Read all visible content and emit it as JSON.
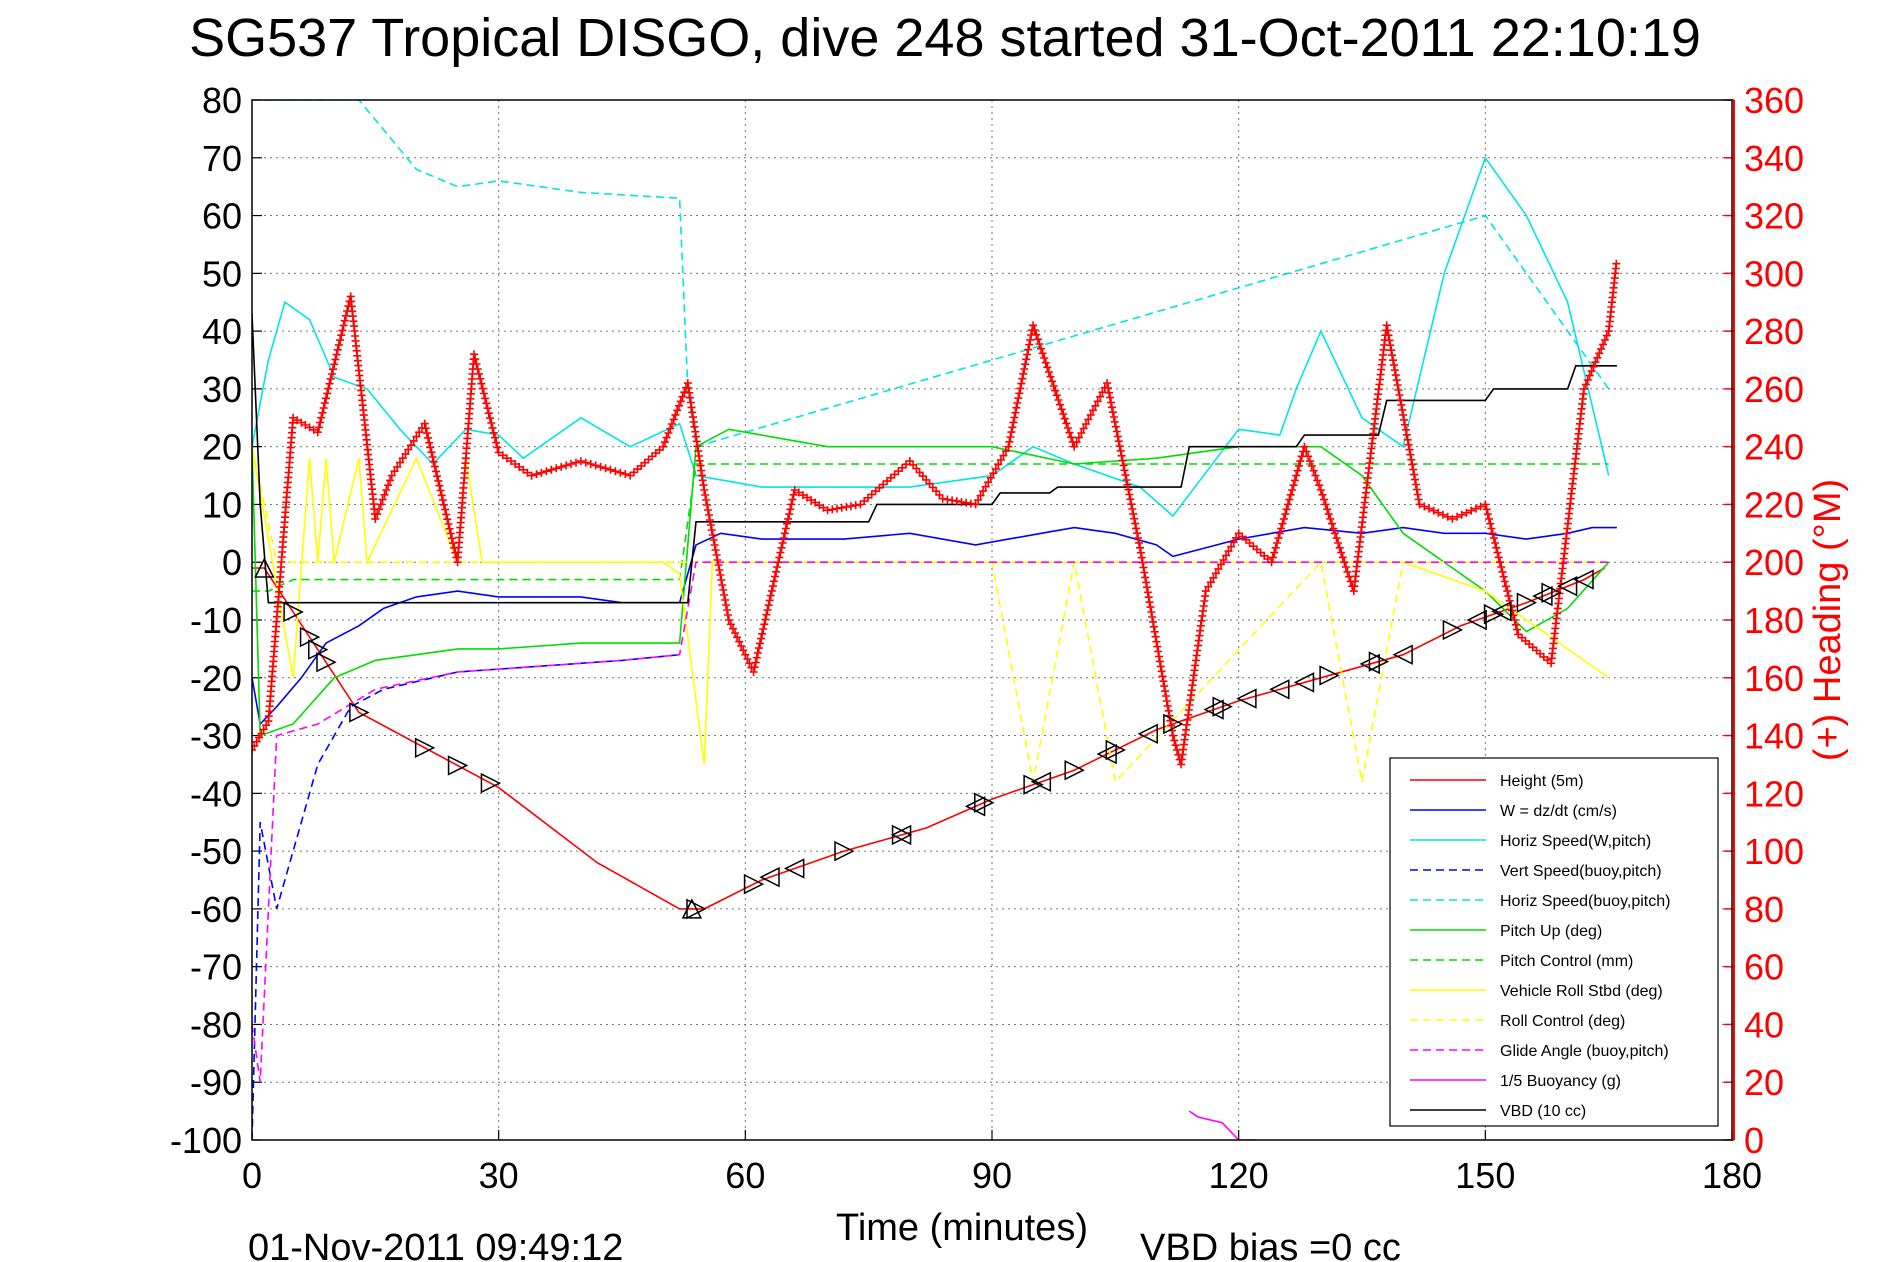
{
  "chart_data": {
    "type": "line",
    "title": "SG537 Tropical DISGO, dive 248 started 31-Oct-2011 22:10:19",
    "xlabel": "Time (minutes)",
    "ylabel": "",
    "y2label": "(+) Heading (°M)",
    "xlim": [
      0,
      180
    ],
    "ylim": [
      -100,
      80
    ],
    "y2lim": [
      0,
      360
    ],
    "xticks": [
      "0",
      "30",
      "60",
      "90",
      "120",
      "150",
      "180"
    ],
    "yticks": [
      "80",
      "70",
      "60",
      "50",
      "40",
      "30",
      "20",
      "10",
      "0",
      "-10",
      "-20",
      "-30",
      "-40",
      "-50",
      "-60",
      "-70",
      "-80",
      "-90",
      "-100"
    ],
    "y2ticks": [
      "360",
      "340",
      "320",
      "300",
      "280",
      "260",
      "240",
      "220",
      "200",
      "180",
      "160",
      "140",
      "120",
      "100",
      "80",
      "60",
      "40",
      "20",
      "0"
    ],
    "grid": true,
    "legend_position": "bottom-right",
    "footer_time": "01-Nov-2011 09:49:12",
    "footer_bias": "VBD bias =0 cc",
    "colors": {
      "red": "#ff0000",
      "blue": "#0000ff",
      "cyan": "#00e5e5",
      "green": "#00dd00",
      "yellow": "#ffff00",
      "magenta": "#ff00ff",
      "black": "#000000"
    },
    "series": [
      {
        "name": "Height (5m)",
        "color": "#ff0000",
        "style": "solid",
        "x": [
          0,
          1.5,
          13,
          30,
          42,
          52,
          53,
          55,
          62,
          72,
          82,
          90,
          100,
          110,
          120,
          130,
          140,
          147,
          155,
          162,
          164.5
        ],
        "y": [
          -1,
          -1,
          -26,
          -39,
          -52,
          -60,
          -60,
          -60,
          -55,
          -50,
          -46,
          -41,
          -36,
          -29,
          -24,
          -20,
          -16,
          -11,
          -7,
          -3,
          -1
        ]
      },
      {
        "name": "W = dz/dt (cm/s)",
        "color": "#0000ff",
        "style": "solid",
        "x": [
          0,
          1,
          3,
          6,
          9,
          13,
          16,
          20,
          25,
          30,
          40,
          45,
          52,
          54,
          57,
          62,
          72,
          80,
          88,
          92,
          96,
          100,
          105,
          110,
          112,
          120,
          128,
          135,
          140,
          145,
          150,
          155,
          160,
          163,
          166
        ],
        "y": [
          -20,
          -28,
          -25,
          -20,
          -14,
          -11,
          -8,
          -6,
          -5,
          -6,
          -6,
          -7,
          -7,
          3,
          5,
          4,
          4,
          5,
          3,
          4,
          5,
          6,
          5,
          3,
          1,
          4,
          6,
          5,
          6,
          5,
          5,
          4,
          5,
          6,
          6
        ]
      },
      {
        "name": "Horiz Speed(W,pitch)",
        "color": "#00e5e5",
        "style": "solid",
        "x": [
          0,
          2,
          4,
          7,
          10,
          14,
          18,
          22,
          26,
          30,
          33,
          40,
          46,
          52,
          54,
          58,
          62,
          70,
          80,
          90,
          95,
          100,
          108,
          112,
          120,
          125,
          127,
          130,
          135,
          140,
          145,
          150,
          155,
          160,
          165
        ],
        "y": [
          20,
          35,
          45,
          42,
          32,
          30,
          23,
          17,
          23,
          22,
          18,
          25,
          20,
          24,
          15,
          14,
          13,
          13,
          13,
          15,
          20,
          17,
          13,
          8,
          23,
          22,
          30,
          40,
          25,
          20,
          50,
          70,
          60,
          45,
          15
        ]
      },
      {
        "name": "Vert Speed(buoy,pitch)",
        "color": "#0000ff",
        "style": "dashed",
        "x": [
          0,
          1,
          3,
          5,
          8,
          12,
          16,
          25,
          35,
          45,
          52
        ],
        "y": [
          -100,
          -45,
          -60,
          -50,
          -35,
          -25,
          -22,
          -19,
          -18,
          -17,
          -16
        ]
      },
      {
        "name": "Horiz Speed(buoy,pitch)",
        "color": "#00e5e5",
        "style": "dashed",
        "x": [
          1.5,
          2.5,
          5,
          10,
          13,
          20,
          25,
          30,
          40,
          52,
          53,
          54,
          150,
          155,
          160,
          165
        ],
        "y": [
          80,
          80,
          80,
          80,
          80,
          68,
          65,
          66,
          64,
          63,
          30,
          20,
          60,
          50,
          40,
          30
        ]
      },
      {
        "name": "Pitch Up (deg)",
        "color": "#00dd00",
        "style": "solid",
        "x": [
          0,
          1,
          5,
          10,
          15,
          20,
          25,
          30,
          40,
          52,
          54,
          58,
          70,
          80,
          90,
          100,
          110,
          120,
          130,
          135,
          140,
          150,
          155,
          160,
          165
        ],
        "y": [
          20,
          -30,
          -28,
          -20,
          -17,
          -16,
          -15,
          -15,
          -14,
          -14,
          20,
          23,
          20,
          20,
          20,
          17,
          18,
          20,
          20,
          15,
          5,
          -5,
          -12,
          -8,
          0
        ]
      },
      {
        "name": "Pitch Control (mm)",
        "color": "#00dd00",
        "style": "dashed",
        "x": [
          0,
          2,
          5,
          52,
          54,
          165
        ],
        "y": [
          -5,
          -5,
          -3,
          -3,
          17,
          17
        ]
      },
      {
        "name": "Vehicle Roll Stbd (deg)",
        "color": "#ffff00",
        "style": "solid",
        "x": [
          0,
          5,
          7,
          8,
          9,
          10,
          13,
          14,
          20,
          25,
          26,
          28,
          30,
          50,
          52,
          55,
          56,
          60,
          90,
          100,
          130,
          140,
          150,
          160,
          165
        ],
        "y": [
          20,
          -20,
          18,
          0,
          18,
          0,
          18,
          0,
          18,
          0,
          18,
          0,
          0,
          0,
          -2,
          -35,
          0,
          0,
          0,
          0,
          0,
          0,
          -5,
          -15,
          -20
        ]
      },
      {
        "name": "Roll Control (deg)",
        "color": "#ffff00",
        "style": "dashed",
        "x": [
          0,
          3,
          52,
          54,
          90,
          95,
          100,
          105,
          130,
          135,
          140,
          165
        ],
        "y": [
          20,
          0,
          0,
          0,
          0,
          -38,
          0,
          -38,
          0,
          -38,
          0,
          0
        ]
      },
      {
        "name": "Glide Angle (buoy,pitch)",
        "color": "#ff00ff",
        "style": "dashed",
        "x": [
          0,
          1,
          3,
          8,
          15,
          25,
          35,
          45,
          52,
          54,
          165
        ],
        "y": [
          -80,
          -90,
          -30,
          -28,
          -22,
          -19,
          -18,
          -17,
          -16,
          0,
          0
        ]
      },
      {
        "name": "1/5 Buoyancy (g)",
        "color": "#ff00ff",
        "style": "solid",
        "x": [
          114,
          115,
          118,
          120,
          122
        ],
        "y": [
          -95,
          -96,
          -97,
          -100,
          -100
        ]
      },
      {
        "name": "VBD (10 cc)",
        "color": "#000000",
        "style": "solid",
        "x": [
          0,
          1,
          2,
          15,
          52,
          53,
          54,
          75,
          76,
          90,
          91,
          97,
          98,
          113,
          114,
          127,
          128,
          137,
          138,
          150,
          151,
          160,
          161,
          165,
          166
        ],
        "y": [
          43,
          10,
          -7,
          -7,
          -7,
          -7,
          7,
          7,
          10,
          10,
          12,
          12,
          13,
          13,
          20,
          20,
          22,
          22,
          28,
          28,
          30,
          30,
          34,
          34,
          34
        ]
      }
    ],
    "heading_series": {
      "name": "(+) Heading (°M)",
      "color": "#ff0000",
      "x": [
        0,
        2,
        5,
        8,
        12,
        15,
        17,
        21,
        25,
        27,
        30,
        34,
        40,
        46,
        50,
        53,
        55,
        58,
        61,
        64,
        66,
        70,
        74,
        80,
        84,
        88,
        92,
        95,
        100,
        104,
        108,
        112,
        113,
        116,
        120,
        124,
        128,
        130,
        134,
        138,
        142,
        146,
        150,
        154,
        158,
        162,
        165,
        166
      ],
      "y": [
        135,
        145,
        250,
        245,
        292,
        215,
        230,
        248,
        200,
        272,
        238,
        230,
        235,
        230,
        240,
        262,
        225,
        180,
        162,
        200,
        225,
        218,
        220,
        235,
        222,
        220,
        240,
        282,
        240,
        262,
        205,
        140,
        130,
        190,
        210,
        200,
        240,
        225,
        190,
        282,
        220,
        215,
        220,
        175,
        165,
        260,
        280,
        305
      ]
    },
    "markers": {
      "up_triangle_x": [
        1.5,
        53.5
      ],
      "left_triangle_x": [
        63,
        66,
        79,
        88,
        96,
        104,
        109,
        117,
        121,
        125,
        128,
        136,
        140,
        149,
        152,
        157,
        160,
        162
      ],
      "right_triangle_x": [
        5,
        7,
        8,
        9,
        13,
        21,
        25,
        29,
        54,
        61,
        72,
        79,
        89,
        95,
        100,
        105,
        112,
        118,
        131,
        137,
        146,
        151,
        155,
        158
      ]
    }
  }
}
